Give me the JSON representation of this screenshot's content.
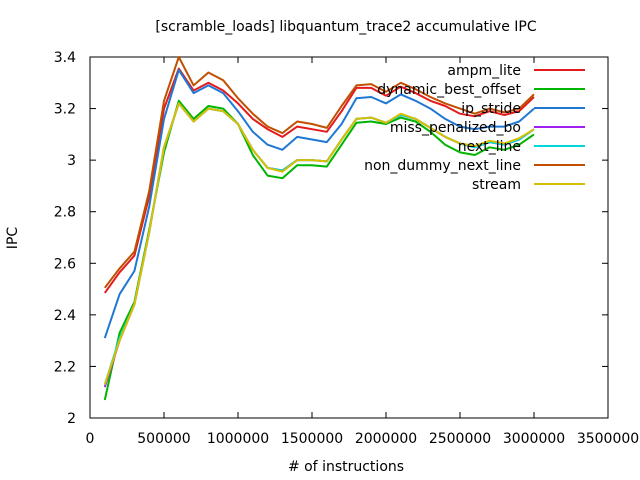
{
  "chart_data": {
    "type": "line",
    "title": "[scramble_loads] libquantum_trace2 accumulative IPC",
    "xlabel": "# of instructions",
    "ylabel": "IPC",
    "xlim": [
      0,
      3500000
    ],
    "ylim": [
      2,
      3.4
    ],
    "xticks": [
      0,
      500000,
      1000000,
      1500000,
      2000000,
      2500000,
      3000000,
      3500000
    ],
    "xtick_labels": [
      "0",
      "500000",
      "1000000",
      "1500000",
      "2000000",
      "2500000",
      "3000000",
      "3500000"
    ],
    "yticks": [
      2,
      2.2,
      2.4,
      2.6,
      2.8,
      3,
      3.2,
      3.4
    ],
    "ytick_labels": [
      "2",
      "2.2",
      "2.4",
      "2.6",
      "2.8",
      "3",
      "3.2",
      "3.4"
    ],
    "grid": false,
    "legend_position": "top-right",
    "x": [
      100000,
      200000,
      300000,
      400000,
      500000,
      600000,
      700000,
      800000,
      900000,
      1000000,
      1100000,
      1200000,
      1300000,
      1400000,
      1500000,
      1600000,
      1700000,
      1800000,
      1900000,
      2000000,
      2100000,
      2200000,
      2300000,
      2400000,
      2500000,
      2600000,
      2700000,
      2800000,
      2900000,
      3000000
    ],
    "series": [
      {
        "name": "ampm_lite",
        "color": "#e41a1c",
        "values": [
          2.485,
          2.565,
          2.63,
          2.86,
          3.2,
          3.355,
          3.27,
          3.3,
          3.27,
          3.22,
          3.16,
          3.12,
          3.09,
          3.13,
          3.12,
          3.11,
          3.19,
          3.28,
          3.28,
          3.25,
          3.285,
          3.26,
          3.23,
          3.21,
          3.18,
          3.17,
          3.19,
          3.175,
          3.19,
          3.245
        ]
      },
      {
        "name": "dynamic_best_offset",
        "color": "#00b400",
        "values": [
          2.07,
          2.33,
          2.45,
          2.73,
          3.03,
          3.23,
          3.16,
          3.21,
          3.2,
          3.14,
          3.02,
          2.94,
          2.93,
          2.98,
          2.98,
          2.975,
          3.06,
          3.145,
          3.15,
          3.14,
          3.165,
          3.15,
          3.11,
          3.06,
          3.03,
          3.02,
          3.05,
          3.04,
          3.06,
          3.1
        ]
      },
      {
        "name": "ip_stride",
        "color": "#1f78d4",
        "values": [
          2.31,
          2.48,
          2.57,
          2.82,
          3.16,
          3.35,
          3.26,
          3.29,
          3.26,
          3.19,
          3.11,
          3.06,
          3.04,
          3.09,
          3.08,
          3.07,
          3.14,
          3.24,
          3.245,
          3.22,
          3.255,
          3.23,
          3.2,
          3.16,
          3.13,
          3.12,
          3.13,
          3.13,
          3.15,
          3.2
        ]
      },
      {
        "name": "miss_penalized_bo",
        "color": "#a020f0",
        "values": [
          2.12,
          2.3,
          2.44,
          2.72,
          3.05,
          3.22,
          3.15,
          3.2,
          3.19,
          3.14,
          3.04,
          2.97,
          2.96,
          3.0,
          3.0,
          2.995,
          3.08,
          3.16,
          3.165,
          3.145,
          3.175,
          3.16,
          3.125,
          3.09,
          3.065,
          3.05,
          3.07,
          3.06,
          3.08,
          3.12
        ]
      },
      {
        "name": "next_line",
        "color": "#00d8d8",
        "values": [
          2.13,
          2.31,
          2.44,
          2.72,
          3.05,
          3.22,
          3.15,
          3.2,
          3.19,
          3.14,
          3.04,
          2.97,
          2.96,
          3.0,
          3.0,
          2.995,
          3.08,
          3.16,
          3.165,
          3.145,
          3.175,
          3.16,
          3.125,
          3.09,
          3.065,
          3.05,
          3.07,
          3.06,
          3.08,
          3.12
        ]
      },
      {
        "name": "non_dummy_next_line",
        "color": "#c05000",
        "values": [
          2.505,
          2.58,
          2.645,
          2.88,
          3.23,
          3.4,
          3.29,
          3.34,
          3.31,
          3.24,
          3.18,
          3.13,
          3.105,
          3.15,
          3.14,
          3.125,
          3.21,
          3.29,
          3.295,
          3.265,
          3.3,
          3.275,
          3.245,
          3.22,
          3.2,
          3.18,
          3.2,
          3.185,
          3.2,
          3.255
        ]
      },
      {
        "name": "stream",
        "color": "#d8c000",
        "values": [
          2.13,
          2.3,
          2.44,
          2.72,
          3.05,
          3.22,
          3.15,
          3.2,
          3.19,
          3.14,
          3.04,
          2.97,
          2.955,
          3.0,
          3.0,
          2.995,
          3.08,
          3.16,
          3.165,
          3.145,
          3.18,
          3.16,
          3.125,
          3.09,
          3.065,
          3.055,
          3.075,
          3.065,
          3.085,
          3.12
        ]
      }
    ]
  }
}
